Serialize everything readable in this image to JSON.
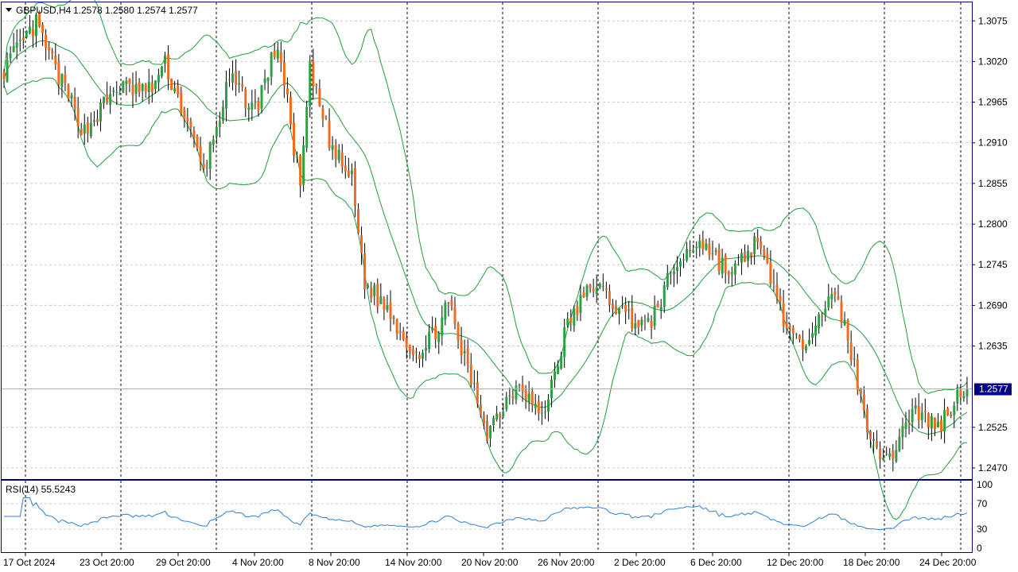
{
  "header": {
    "symbol_label": "GBPUSD,H4",
    "ohlc": "1.2578 1.2580 1.2574 1.2577",
    "dropdown_icon": "triangle-down-icon"
  },
  "indicator": {
    "label": "RSI(14) 55.5243"
  },
  "price_scale": {
    "ticks": [
      "1.3075",
      "1.3020",
      "1.2965",
      "1.2910",
      "1.2855",
      "1.2800",
      "1.2745",
      "1.2690",
      "1.2635",
      "1.2525",
      "1.2470"
    ],
    "current": "1.2577"
  },
  "rsi_scale": {
    "ticks": [
      "100",
      "70",
      "30",
      "0"
    ]
  },
  "time_axis": {
    "labels": [
      "17 Oct 2024",
      "23 Oct 20:00",
      "29 Oct 20:00",
      "4 Nov 20:00",
      "8 Nov 20:00",
      "14 Nov 20:00",
      "20 Nov 20:00",
      "26 Nov 20:00",
      "2 Dec 20:00",
      "6 Dec 20:00",
      "12 Dec 20:00",
      "18 Dec 20:00",
      "24 Dec 20:00"
    ]
  },
  "colors": {
    "bull": "#2ea043",
    "bear": "#f26b1d",
    "bands": "#1f9d3a",
    "rsi_line": "#2a7fd4",
    "axis": "#000080",
    "grid": "#c8c8c8"
  },
  "chart_data": [
    {
      "type": "candlestick",
      "title": "GBPUSD,H4",
      "ylim": [
        1.2455,
        1.31
      ],
      "grid": true,
      "overlay": "Bollinger Bands",
      "waypoints": {
        "x_index": [
          0,
          10,
          18,
          25,
          35,
          45,
          50,
          55,
          62,
          70,
          78,
          85,
          92,
          95,
          102,
          108,
          112,
          120,
          125,
          130,
          138,
          142,
          150,
          160,
          167,
          175,
          183,
          192,
          200,
          208,
          216,
          226,
          233,
          238,
          243,
          247,
          252,
          258,
          262,
          267,
          274,
          282,
          290,
          298
        ],
        "close": [
          1.301,
          1.307,
          1.299,
          1.2925,
          1.2985,
          1.298,
          1.3015,
          1.296,
          1.287,
          1.2995,
          1.2955,
          1.3045,
          1.285,
          1.3005,
          1.29,
          1.286,
          1.272,
          1.268,
          1.264,
          1.2625,
          1.269,
          1.263,
          1.252,
          1.259,
          1.2535,
          1.2665,
          1.272,
          1.268,
          1.266,
          1.274,
          1.278,
          1.273,
          1.2775,
          1.273,
          1.266,
          1.263,
          1.2675,
          1.27,
          1.265,
          1.254,
          1.2475,
          1.255,
          1.2525,
          1.258
        ]
      },
      "last": 1.2577
    },
    {
      "type": "line",
      "title": "RSI(14) 55.5243",
      "ylim": [
        0,
        100
      ],
      "levels": [
        30,
        70
      ],
      "current": 55.5243
    }
  ]
}
